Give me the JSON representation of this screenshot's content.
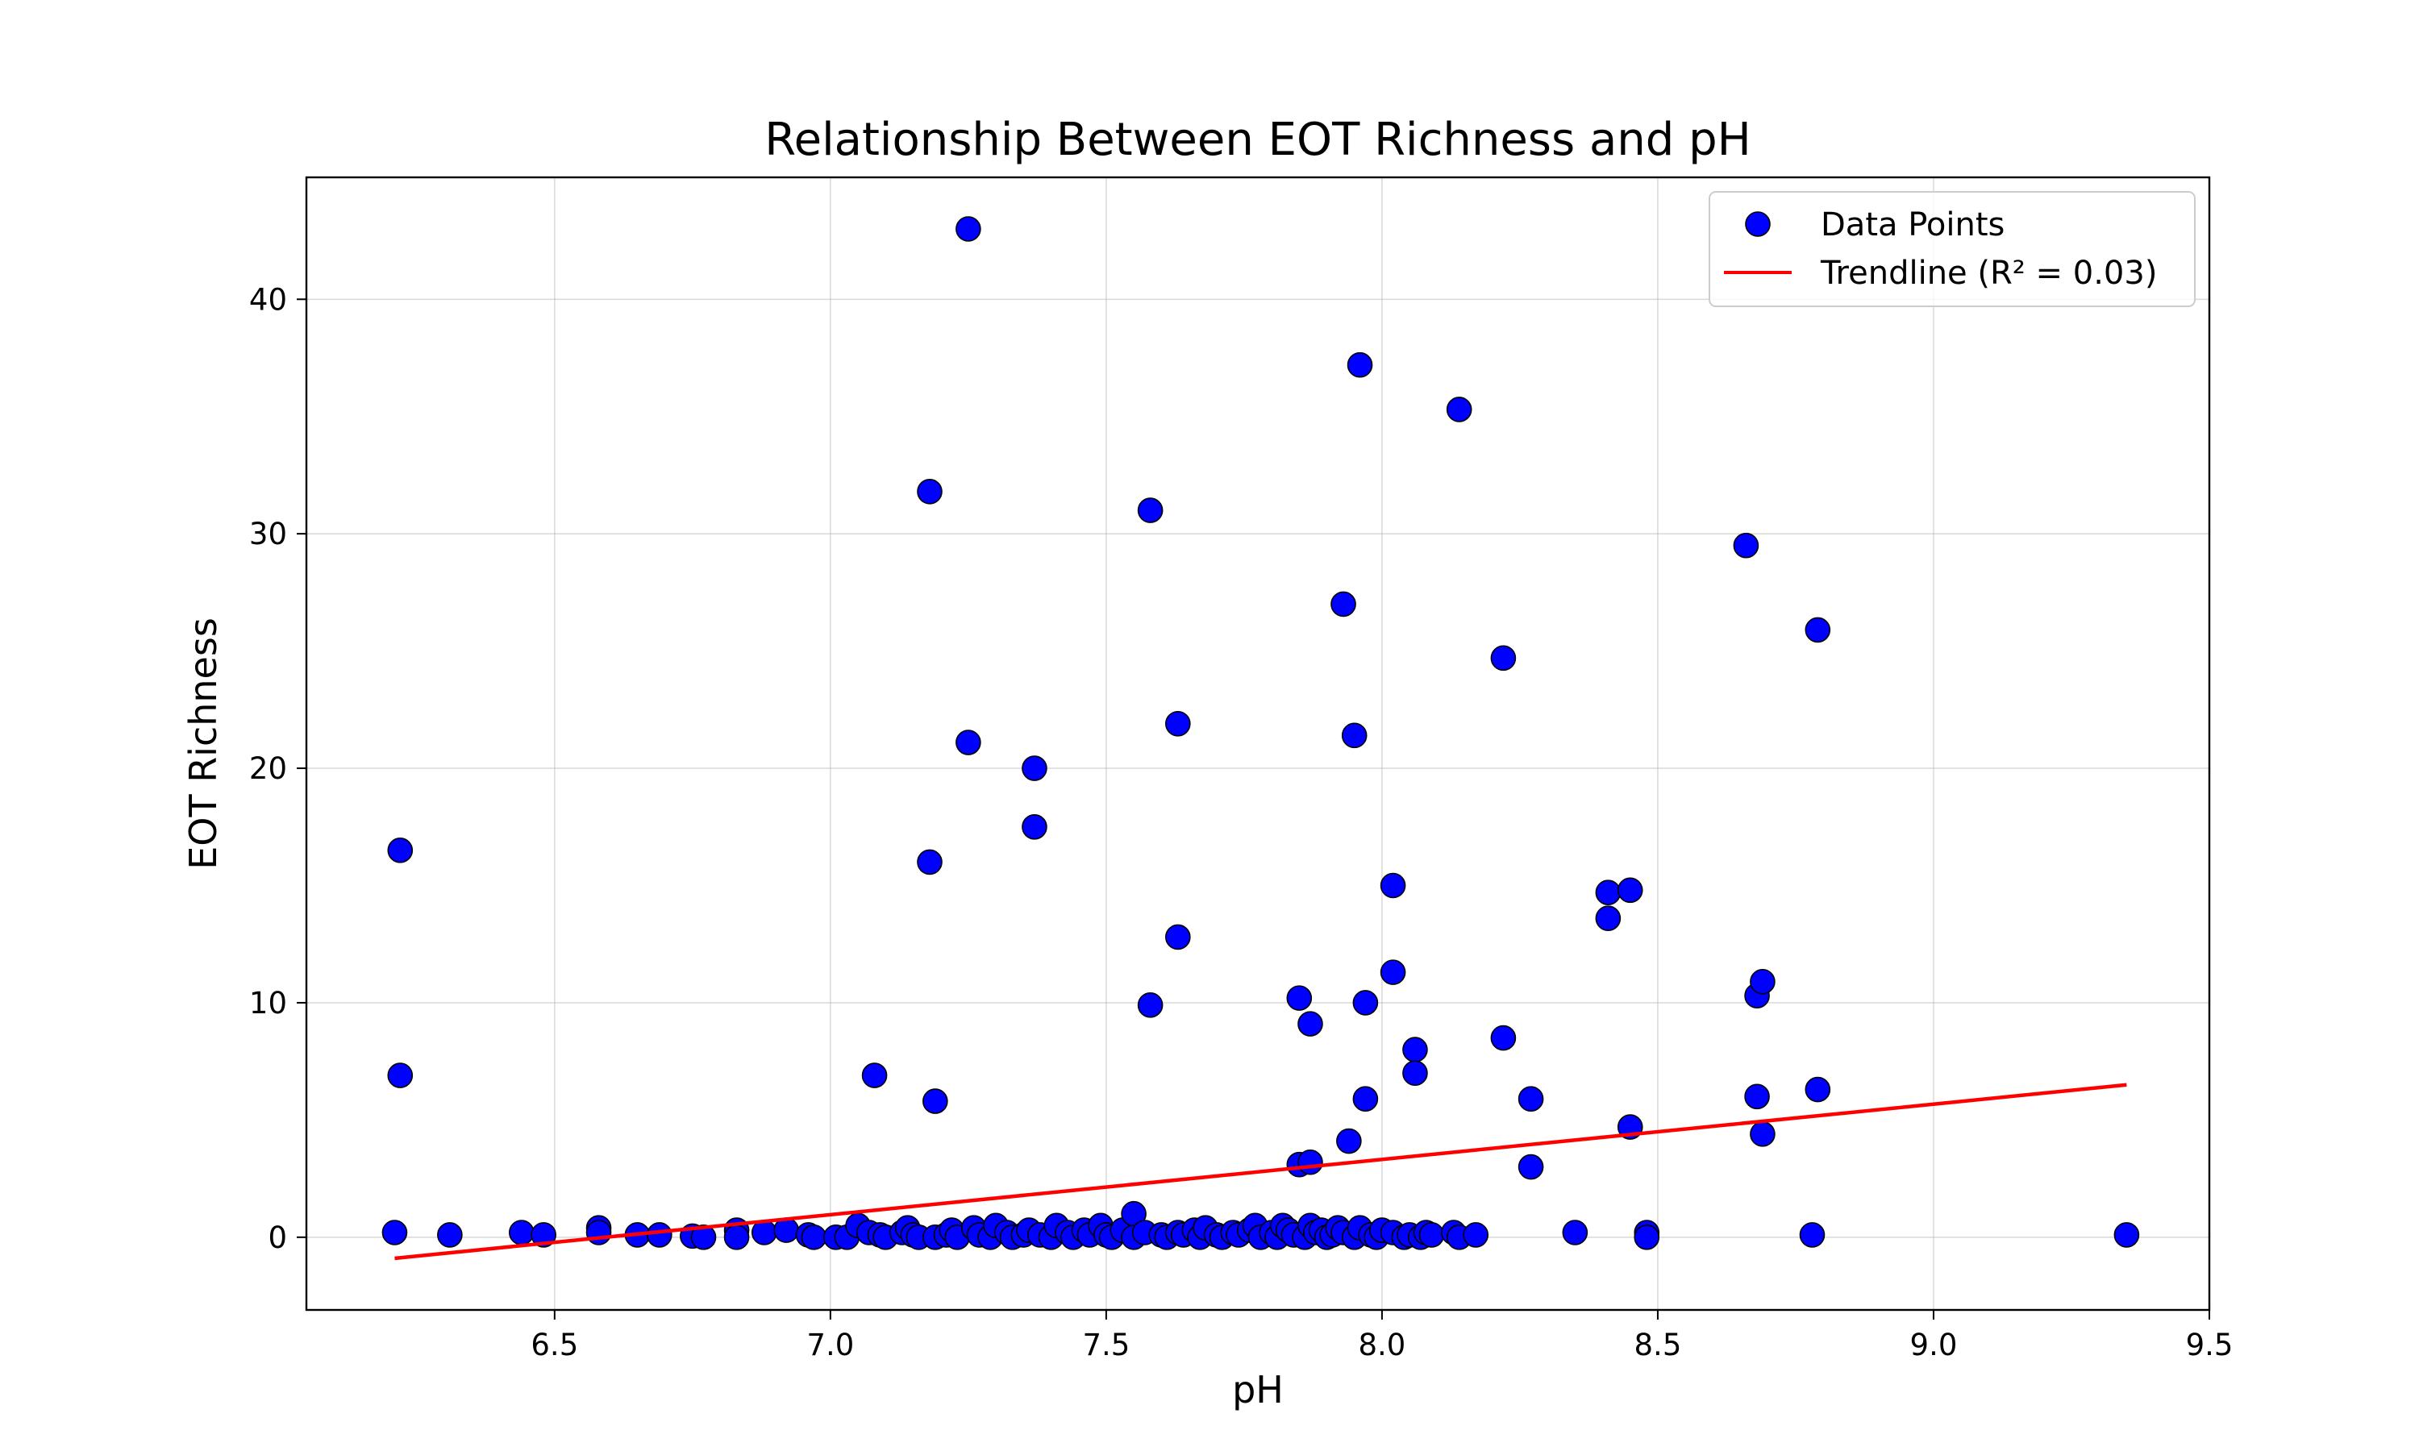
{
  "chart_data": {
    "type": "scatter",
    "title": "Relationship Between EOT Richness and pH",
    "xlabel": "pH",
    "ylabel": "EOT Richness",
    "xlim": [
      6.05,
      9.5
    ],
    "ylim": [
      -3.1,
      45.2
    ],
    "xticks": [
      "6.5",
      "7.0",
      "7.5",
      "8.0",
      "8.5",
      "9.0",
      "9.5"
    ],
    "yticks": [
      "0",
      "10",
      "20",
      "30",
      "40"
    ],
    "grid": true,
    "legend_position": "top-right",
    "series": [
      {
        "name": "Data Points",
        "kind": "scatter",
        "color": "#0000ff",
        "edge_color": "#000000",
        "points": [
          [
            6.21,
            0.2
          ],
          [
            6.22,
            16.5
          ],
          [
            6.22,
            6.9
          ],
          [
            6.31,
            0.1
          ],
          [
            6.44,
            0.2
          ],
          [
            6.48,
            0.1
          ],
          [
            6.58,
            0.4
          ],
          [
            6.58,
            0.2
          ],
          [
            6.65,
            0.1
          ],
          [
            6.69,
            0.1
          ],
          [
            6.75,
            0.05
          ],
          [
            6.77,
            0.0
          ],
          [
            6.83,
            0.3
          ],
          [
            6.83,
            0.0
          ],
          [
            6.88,
            0.2
          ],
          [
            6.92,
            0.3
          ],
          [
            6.96,
            0.1
          ],
          [
            6.97,
            0.0
          ],
          [
            7.01,
            0.0
          ],
          [
            7.03,
            0.0
          ],
          [
            7.05,
            0.5
          ],
          [
            7.07,
            0.2
          ],
          [
            7.08,
            6.9
          ],
          [
            7.09,
            0.1
          ],
          [
            7.1,
            0.0
          ],
          [
            7.13,
            0.2
          ],
          [
            7.14,
            0.4
          ],
          [
            7.15,
            0.1
          ],
          [
            7.16,
            0.0
          ],
          [
            7.18,
            31.8
          ],
          [
            7.18,
            16.0
          ],
          [
            7.19,
            5.8
          ],
          [
            7.19,
            0.0
          ],
          [
            7.21,
            0.1
          ],
          [
            7.22,
            0.3
          ],
          [
            7.23,
            0.0
          ],
          [
            7.25,
            43.0
          ],
          [
            7.25,
            21.1
          ],
          [
            7.26,
            0.4
          ],
          [
            7.27,
            0.1
          ],
          [
            7.29,
            0.0
          ],
          [
            7.3,
            0.5
          ],
          [
            7.32,
            0.2
          ],
          [
            7.33,
            0.0
          ],
          [
            7.35,
            0.1
          ],
          [
            7.36,
            0.3
          ],
          [
            7.37,
            20.0
          ],
          [
            7.37,
            17.5
          ],
          [
            7.38,
            0.1
          ],
          [
            7.4,
            0.0
          ],
          [
            7.41,
            0.5
          ],
          [
            7.43,
            0.2
          ],
          [
            7.44,
            0.0
          ],
          [
            7.46,
            0.3
          ],
          [
            7.47,
            0.1
          ],
          [
            7.49,
            0.5
          ],
          [
            7.5,
            0.1
          ],
          [
            7.51,
            0.0
          ],
          [
            7.53,
            0.3
          ],
          [
            7.55,
            1.0
          ],
          [
            7.55,
            0.0
          ],
          [
            7.57,
            0.2
          ],
          [
            7.58,
            31.0
          ],
          [
            7.58,
            9.9
          ],
          [
            7.6,
            0.1
          ],
          [
            7.61,
            0.0
          ],
          [
            7.63,
            21.9
          ],
          [
            7.63,
            12.8
          ],
          [
            7.63,
            0.2
          ],
          [
            7.64,
            0.1
          ],
          [
            7.66,
            0.3
          ],
          [
            7.67,
            0.0
          ],
          [
            7.68,
            0.4
          ],
          [
            7.7,
            0.1
          ],
          [
            7.71,
            0.0
          ],
          [
            7.73,
            0.2
          ],
          [
            7.74,
            0.1
          ],
          [
            7.76,
            0.3
          ],
          [
            7.77,
            0.5
          ],
          [
            7.78,
            0.0
          ],
          [
            7.8,
            0.2
          ],
          [
            7.81,
            0.0
          ],
          [
            7.82,
            0.5
          ],
          [
            7.83,
            0.3
          ],
          [
            7.84,
            0.1
          ],
          [
            7.85,
            10.2
          ],
          [
            7.85,
            3.1
          ],
          [
            7.86,
            0.0
          ],
          [
            7.87,
            9.1
          ],
          [
            7.87,
            3.2
          ],
          [
            7.87,
            0.5
          ],
          [
            7.88,
            0.2
          ],
          [
            7.89,
            0.3
          ],
          [
            7.9,
            0.0
          ],
          [
            7.91,
            0.1
          ],
          [
            7.92,
            0.4
          ],
          [
            7.93,
            27.0
          ],
          [
            7.93,
            0.2
          ],
          [
            7.94,
            4.1
          ],
          [
            7.95,
            21.4
          ],
          [
            7.95,
            0.0
          ],
          [
            7.96,
            37.2
          ],
          [
            7.96,
            0.4
          ],
          [
            7.97,
            10.0
          ],
          [
            7.97,
            5.9
          ],
          [
            7.98,
            0.1
          ],
          [
            7.99,
            0.0
          ],
          [
            8.0,
            0.3
          ],
          [
            8.02,
            15.0
          ],
          [
            8.02,
            11.3
          ],
          [
            8.02,
            0.2
          ],
          [
            8.04,
            0.0
          ],
          [
            8.05,
            0.1
          ],
          [
            8.06,
            8.0
          ],
          [
            8.06,
            7.0
          ],
          [
            8.07,
            0.0
          ],
          [
            8.08,
            0.2
          ],
          [
            8.09,
            0.1
          ],
          [
            8.13,
            0.2
          ],
          [
            8.14,
            35.3
          ],
          [
            8.14,
            0.0
          ],
          [
            8.17,
            0.1
          ],
          [
            8.22,
            24.7
          ],
          [
            8.22,
            8.5
          ],
          [
            8.27,
            5.9
          ],
          [
            8.27,
            3.0
          ],
          [
            8.35,
            0.2
          ],
          [
            8.41,
            14.7
          ],
          [
            8.41,
            13.6
          ],
          [
            8.45,
            14.8
          ],
          [
            8.45,
            4.7
          ],
          [
            8.48,
            0.2
          ],
          [
            8.48,
            0.0
          ],
          [
            8.66,
            29.5
          ],
          [
            8.68,
            10.3
          ],
          [
            8.68,
            6.0
          ],
          [
            8.69,
            10.9
          ],
          [
            8.69,
            4.4
          ],
          [
            8.78,
            0.1
          ],
          [
            8.79,
            25.9
          ],
          [
            8.79,
            6.3
          ],
          [
            9.35,
            0.1
          ]
        ]
      },
      {
        "name": "Trendline (R² = 0.03)",
        "kind": "line",
        "color": "#ff0000",
        "points": [
          [
            6.21,
            -0.9
          ],
          [
            9.35,
            6.5
          ]
        ]
      }
    ]
  }
}
